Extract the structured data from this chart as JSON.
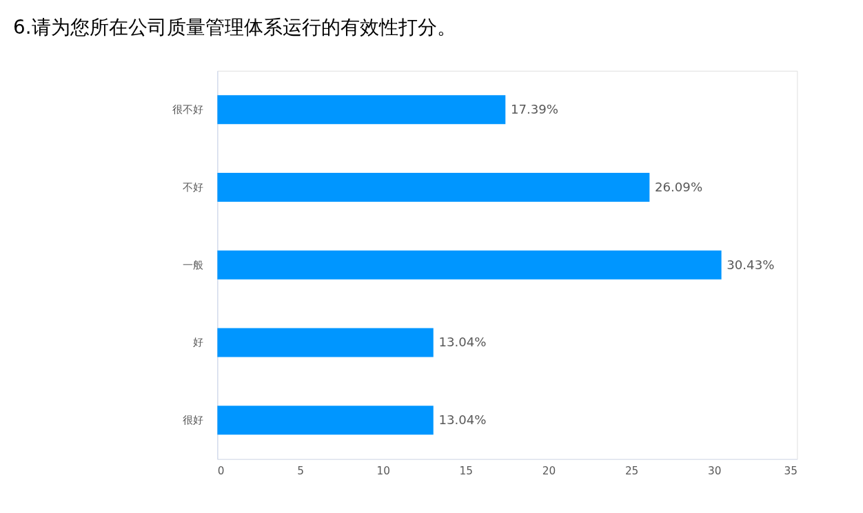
{
  "chart_data": {
    "type": "bar",
    "orientation": "horizontal",
    "title": "6.请为您所在公司质量管理体系运行的有效性打分。",
    "categories": [
      "很不好",
      "不好",
      "一般",
      "好",
      "很好"
    ],
    "values": [
      17.39,
      26.09,
      30.43,
      13.04,
      13.04
    ],
    "value_labels": [
      "17.39%",
      "26.09%",
      "30.43%",
      "13.04%",
      "13.04%"
    ],
    "color": "#0096ff",
    "xlim": [
      0,
      35
    ],
    "xticks": [
      0,
      5,
      10,
      15,
      20,
      25,
      30,
      35
    ],
    "grid": false
  }
}
